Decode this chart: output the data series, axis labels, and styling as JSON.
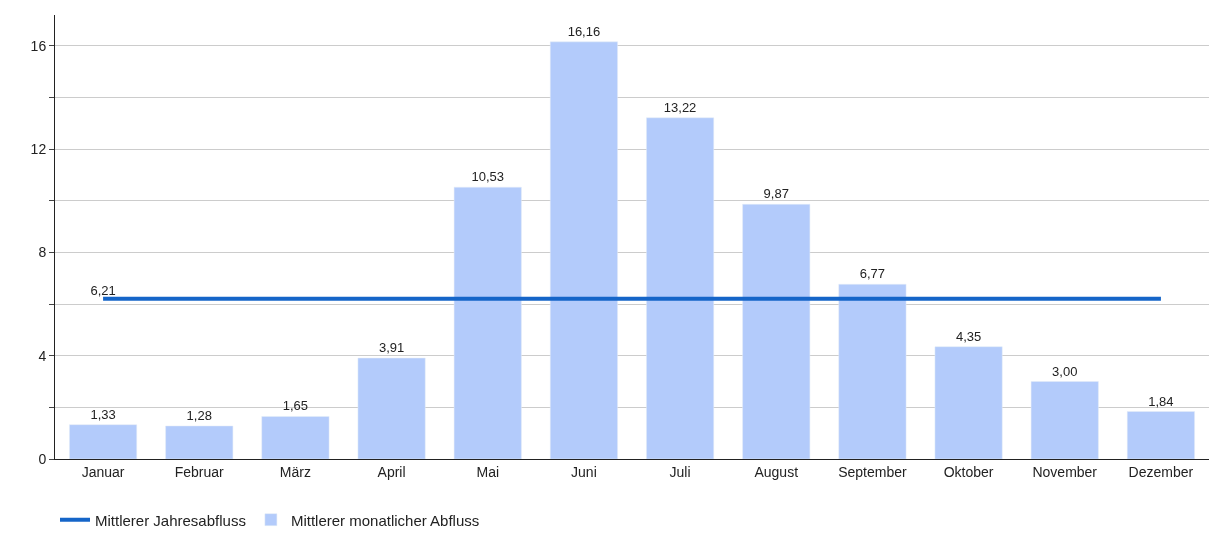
{
  "chart_data": {
    "type": "bar",
    "categories": [
      "Januar",
      "Februar",
      "März",
      "April",
      "Mai",
      "Juni",
      "Juli",
      "August",
      "September",
      "Oktober",
      "November",
      "Dezember"
    ],
    "series": [
      {
        "type": "line",
        "name": "Mittlerer Jahresabfluss",
        "color": "#1565c8",
        "values": [
          6.21,
          6.21,
          6.21,
          6.21,
          6.21,
          6.21,
          6.21,
          6.21,
          6.21,
          6.21,
          6.21,
          6.21
        ],
        "value_labels": [
          "6,21",
          null,
          null,
          null,
          null,
          null,
          null,
          null,
          null,
          null,
          null,
          null
        ]
      },
      {
        "name": "Mittlerer monatlicher Abfluss",
        "color": "#b3cbfb",
        "values": [
          1.33,
          1.28,
          1.65,
          3.91,
          10.53,
          16.16,
          13.22,
          9.87,
          6.77,
          4.35,
          3.0,
          1.84
        ],
        "value_labels": [
          "1,33",
          "1,28",
          "1,65",
          "3,91",
          "10,53",
          "16,16",
          "13,22",
          "9,87",
          "6,77",
          "4,35",
          "3,00",
          "1,84"
        ]
      }
    ],
    "ylim": [
      0,
      17.2
    ],
    "yticks": [
      0,
      {
        "value": 2,
        "label": null
      },
      4,
      {
        "value": 6,
        "label": null
      },
      8,
      {
        "value": 10,
        "label": null
      },
      12,
      {
        "value": 14,
        "label": null
      },
      16
    ],
    "grid": "y",
    "legend": "bottom left"
  }
}
